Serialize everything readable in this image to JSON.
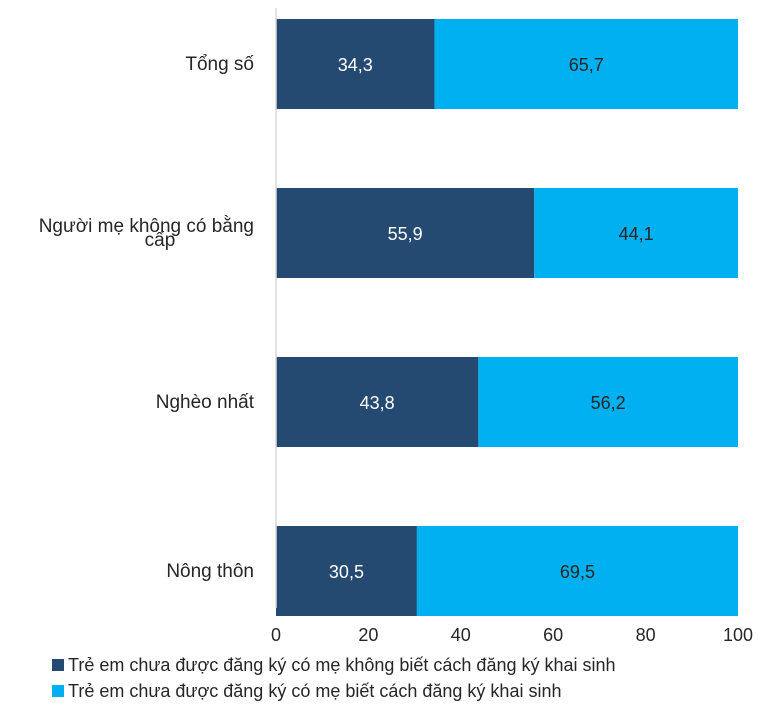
{
  "chart_data": {
    "type": "bar",
    "orientation": "horizontal",
    "stacked": true,
    "categories": [
      "Tổng số",
      "Người mẹ không có bằng cấp",
      "Nghèo nhất",
      "Nông thôn"
    ],
    "category_lines": [
      [
        "Tổng số"
      ],
      [
        "Người mẹ không có bằng",
        "cấp"
      ],
      [
        "Nghèo nhất"
      ],
      [
        "Nông thôn"
      ]
    ],
    "series": [
      {
        "name": "Trẻ em chưa được đăng ký có mẹ không biết cách đăng ký khai sinh",
        "values": [
          34.3,
          55.9,
          43.8,
          30.5
        ],
        "labels": [
          "34,3",
          "55,9",
          "43,8",
          "30,5"
        ],
        "color": "#254a71"
      },
      {
        "name": "Trẻ em chưa được đăng ký có mẹ biết cách đăng ký khai sinh",
        "values": [
          65.7,
          44.1,
          56.2,
          69.5
        ],
        "labels": [
          "65,7",
          "44,1",
          "56,2",
          "69,5"
        ],
        "color": "#00b0f0"
      }
    ],
    "xlim": [
      0,
      100
    ],
    "xticks": [
      "0",
      "20",
      "40",
      "60",
      "80",
      "100"
    ],
    "grid": false,
    "legend_position": "bottom"
  }
}
